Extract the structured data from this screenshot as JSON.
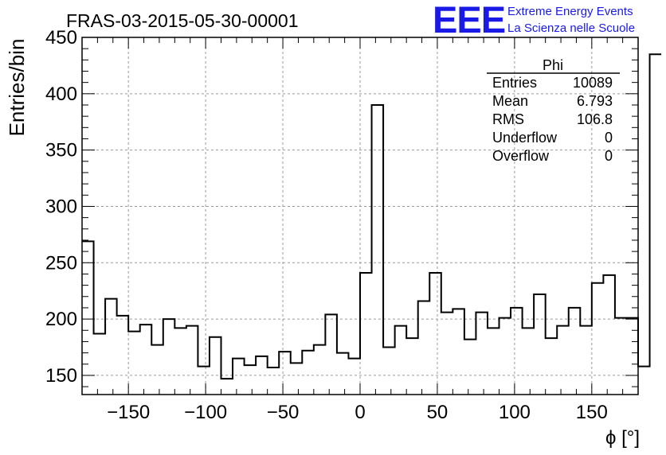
{
  "header": {
    "run_title": "FRAS-03-2015-05-30-00001",
    "logo_text": "EEE",
    "logo_line1": "Extreme Energy Events",
    "logo_line2": "La Scienza nelle Scuole"
  },
  "stats": {
    "title": "Phi",
    "rows": [
      {
        "label": "Entries",
        "value": "10089"
      },
      {
        "label": "Mean",
        "value": "6.793"
      },
      {
        "label": "RMS",
        "value": "106.8"
      },
      {
        "label": "Underflow",
        "value": "0"
      },
      {
        "label": "Overflow",
        "value": "0"
      }
    ]
  },
  "colors": {
    "logo": "#1a1ae6",
    "histogram": "#000000",
    "grid": "#9a9a9a"
  },
  "chart_data": {
    "type": "bar",
    "histogram": "step",
    "xlabel": "ϕ [°]",
    "ylabel": "Entries/bin",
    "xlim": [
      -180,
      180
    ],
    "ylim": [
      133,
      450
    ],
    "xticks": [
      -150,
      -100,
      -50,
      0,
      50,
      100,
      150
    ],
    "yticks": [
      150,
      200,
      250,
      300,
      350,
      400,
      450
    ],
    "grid": true,
    "bin_edges_start": -180,
    "bin_width": 7.5,
    "values": [
      269,
      187,
      218,
      203,
      189,
      195,
      177,
      200,
      192,
      194,
      158,
      184,
      147,
      165,
      159,
      167,
      157,
      171,
      161,
      172,
      177,
      204,
      170,
      165,
      241,
      390,
      175,
      194,
      183,
      216,
      241,
      206,
      209,
      182,
      206,
      192,
      201,
      210,
      192,
      222,
      183,
      194,
      210,
      194,
      232,
      239,
      201,
      201,
      158,
      435
    ]
  }
}
